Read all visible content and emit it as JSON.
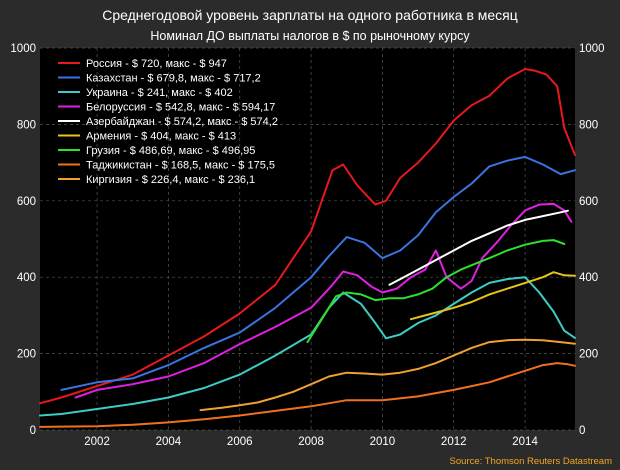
{
  "chart_data": {
    "type": "line",
    "title": "Среднегодовой уровень зарплаты на одного работника в месяц",
    "subtitle": "Номинал ДО выплаты налогов в $ по рыночному курсу",
    "source": "Source: Thomson Reuters Datastream",
    "xlim": [
      2000.4,
      2015.4
    ],
    "ylim": [
      0,
      1000
    ],
    "x_ticks": [
      2002,
      2004,
      2006,
      2008,
      2010,
      2012,
      2014
    ],
    "x_tick_labels": [
      "2002",
      "2004",
      "2006",
      "2008",
      "2010",
      "2012",
      "2014"
    ],
    "y_ticks": [
      0,
      200,
      400,
      600,
      800,
      1000
    ],
    "y_tick_labels": [
      "0",
      "200",
      "400",
      "600",
      "800",
      "1000"
    ],
    "grid": true,
    "legend_position": "top-left",
    "series": [
      {
        "name": "Россия - $ 720, макс - $ 947",
        "color": "#e8191d",
        "points": [
          [
            2000.4,
            70
          ],
          [
            2001,
            85
          ],
          [
            2002,
            115
          ],
          [
            2003,
            145
          ],
          [
            2004,
            195
          ],
          [
            2005,
            245
          ],
          [
            2006,
            305
          ],
          [
            2007,
            380
          ],
          [
            2008,
            520
          ],
          [
            2008.6,
            680
          ],
          [
            2008.9,
            695
          ],
          [
            2009.3,
            640
          ],
          [
            2009.8,
            590
          ],
          [
            2010.1,
            600
          ],
          [
            2010.5,
            660
          ],
          [
            2011,
            700
          ],
          [
            2011.5,
            750
          ],
          [
            2012,
            810
          ],
          [
            2012.5,
            850
          ],
          [
            2013,
            875
          ],
          [
            2013.5,
            920
          ],
          [
            2014,
            945
          ],
          [
            2014.3,
            940
          ],
          [
            2014.6,
            930
          ],
          [
            2014.9,
            900
          ],
          [
            2015.1,
            790
          ],
          [
            2015.4,
            720
          ]
        ]
      },
      {
        "name": "Казахстан - $ 679,8, макс - $ 717,2",
        "color": "#3a74e0",
        "points": [
          [
            2001,
            105
          ],
          [
            2002,
            125
          ],
          [
            2003,
            135
          ],
          [
            2004,
            170
          ],
          [
            2005,
            215
          ],
          [
            2006,
            255
          ],
          [
            2007,
            320
          ],
          [
            2008,
            400
          ],
          [
            2008.5,
            455
          ],
          [
            2009,
            505
          ],
          [
            2009.5,
            490
          ],
          [
            2010,
            450
          ],
          [
            2010.5,
            470
          ],
          [
            2011,
            510
          ],
          [
            2011.5,
            570
          ],
          [
            2012,
            610
          ],
          [
            2012.5,
            645
          ],
          [
            2013,
            690
          ],
          [
            2013.5,
            705
          ],
          [
            2014,
            715
          ],
          [
            2014.5,
            695
          ],
          [
            2015,
            670
          ],
          [
            2015.4,
            680
          ]
        ]
      },
      {
        "name": "Украина - $ 241, макс - $ 402",
        "color": "#3ecbc3",
        "points": [
          [
            2000.4,
            38
          ],
          [
            2001,
            42
          ],
          [
            2002,
            55
          ],
          [
            2003,
            68
          ],
          [
            2004,
            85
          ],
          [
            2005,
            110
          ],
          [
            2006,
            145
          ],
          [
            2007,
            195
          ],
          [
            2008,
            250
          ],
          [
            2008.5,
            320
          ],
          [
            2008.9,
            360
          ],
          [
            2009.4,
            330
          ],
          [
            2009.8,
            280
          ],
          [
            2010.1,
            240
          ],
          [
            2010.5,
            250
          ],
          [
            2011,
            280
          ],
          [
            2011.5,
            300
          ],
          [
            2012,
            330
          ],
          [
            2012.5,
            360
          ],
          [
            2013,
            385
          ],
          [
            2013.5,
            395
          ],
          [
            2014,
            400
          ],
          [
            2014.4,
            360
          ],
          [
            2014.8,
            310
          ],
          [
            2015.1,
            260
          ],
          [
            2015.4,
            241
          ]
        ]
      },
      {
        "name": "Белоруссия - $ 542,8, макс - $ 594,17",
        "color": "#e020e0",
        "points": [
          [
            2001.4,
            85
          ],
          [
            2002,
            105
          ],
          [
            2003,
            120
          ],
          [
            2004,
            140
          ],
          [
            2005,
            175
          ],
          [
            2006,
            225
          ],
          [
            2007,
            270
          ],
          [
            2008,
            320
          ],
          [
            2008.6,
            380
          ],
          [
            2008.9,
            415
          ],
          [
            2009.3,
            405
          ],
          [
            2009.7,
            375
          ],
          [
            2010,
            360
          ],
          [
            2010.4,
            370
          ],
          [
            2010.8,
            400
          ],
          [
            2011.2,
            420
          ],
          [
            2011.5,
            470
          ],
          [
            2011.8,
            400
          ],
          [
            2012.2,
            370
          ],
          [
            2012.5,
            390
          ],
          [
            2012.8,
            450
          ],
          [
            2013.2,
            490
          ],
          [
            2013.6,
            535
          ],
          [
            2014,
            575
          ],
          [
            2014.4,
            590
          ],
          [
            2014.8,
            592
          ],
          [
            2015.1,
            575
          ],
          [
            2015.3,
            545
          ]
        ]
      },
      {
        "name": "Азербайджан - $ 574,2, макс - $ 574,2",
        "color": "#ffffff",
        "points": [
          [
            2010.2,
            380
          ],
          [
            2010.6,
            400
          ],
          [
            2011,
            420
          ],
          [
            2011.5,
            445
          ],
          [
            2012,
            470
          ],
          [
            2012.5,
            495
          ],
          [
            2013,
            515
          ],
          [
            2013.5,
            535
          ],
          [
            2014,
            550
          ],
          [
            2014.5,
            560
          ],
          [
            2015,
            570
          ],
          [
            2015.2,
            574
          ]
        ]
      },
      {
        "name": "Армения - $ 404, макс - $ 413",
        "color": "#e8c21d",
        "points": [
          [
            2010.8,
            290
          ],
          [
            2011.2,
            300
          ],
          [
            2011.6,
            310
          ],
          [
            2012,
            320
          ],
          [
            2012.5,
            335
          ],
          [
            2013,
            355
          ],
          [
            2013.5,
            370
          ],
          [
            2014,
            385
          ],
          [
            2014.5,
            400
          ],
          [
            2014.8,
            413
          ],
          [
            2015.1,
            405
          ],
          [
            2015.4,
            404
          ]
        ]
      },
      {
        "name": "Грузия - $ 486,69, макс - $ 496,95",
        "color": "#2ee02e",
        "points": [
          [
            2007.9,
            230
          ],
          [
            2008.3,
            290
          ],
          [
            2008.7,
            350
          ],
          [
            2009,
            360
          ],
          [
            2009.4,
            355
          ],
          [
            2009.8,
            340
          ],
          [
            2010.2,
            345
          ],
          [
            2010.6,
            345
          ],
          [
            2011,
            355
          ],
          [
            2011.4,
            370
          ],
          [
            2011.8,
            400
          ],
          [
            2012.2,
            420
          ],
          [
            2012.6,
            435
          ],
          [
            2013,
            450
          ],
          [
            2013.5,
            470
          ],
          [
            2014,
            485
          ],
          [
            2014.5,
            495
          ],
          [
            2014.8,
            497
          ],
          [
            2015.1,
            487
          ]
        ]
      },
      {
        "name": "Таджикистан  - $ 168,5, макс - $ 175,5",
        "color": "#f07020",
        "points": [
          [
            2000.4,
            8
          ],
          [
            2002,
            10
          ],
          [
            2003,
            14
          ],
          [
            2004,
            20
          ],
          [
            2005,
            28
          ],
          [
            2006,
            38
          ],
          [
            2007,
            50
          ],
          [
            2008,
            62
          ],
          [
            2009,
            78
          ],
          [
            2010,
            78
          ],
          [
            2011,
            88
          ],
          [
            2012,
            105
          ],
          [
            2012.5,
            115
          ],
          [
            2013,
            125
          ],
          [
            2013.5,
            140
          ],
          [
            2014,
            155
          ],
          [
            2014.5,
            170
          ],
          [
            2014.9,
            175
          ],
          [
            2015.2,
            172
          ],
          [
            2015.4,
            168
          ]
        ]
      },
      {
        "name": "Киргизия  - $ 226,4, макс - $ 236,1",
        "color": "#f0a030",
        "points": [
          [
            2004.9,
            52
          ],
          [
            2005.5,
            58
          ],
          [
            2006,
            65
          ],
          [
            2006.5,
            72
          ],
          [
            2007,
            85
          ],
          [
            2007.5,
            100
          ],
          [
            2008,
            120
          ],
          [
            2008.5,
            140
          ],
          [
            2009,
            150
          ],
          [
            2009.5,
            148
          ],
          [
            2010,
            145
          ],
          [
            2010.5,
            150
          ],
          [
            2011,
            160
          ],
          [
            2011.5,
            175
          ],
          [
            2012,
            195
          ],
          [
            2012.5,
            215
          ],
          [
            2013,
            230
          ],
          [
            2013.5,
            235
          ],
          [
            2014,
            236
          ],
          [
            2014.5,
            235
          ],
          [
            2015,
            230
          ],
          [
            2015.4,
            226
          ]
        ]
      }
    ]
  }
}
